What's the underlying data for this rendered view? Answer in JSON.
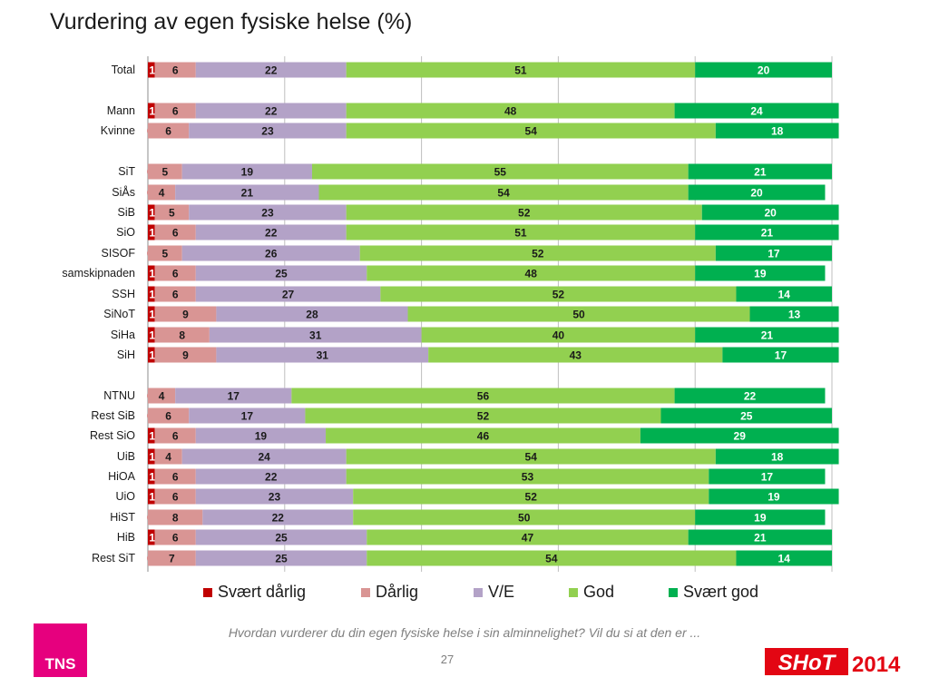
{
  "title": "Vurdering av egen fysiske helse (%)",
  "footnote": "Hvordan vurderer du din egen fysiske helse i sin alminnelighet? Vil du si at den er ...",
  "page_number": "27",
  "logos": {
    "tns": "TNS",
    "shot": "SHoT",
    "year": "2014"
  },
  "colors": {
    "svaert_darlig": "#c00000",
    "darlig": "#d99594",
    "ve": "#b3a2c7",
    "god": "#92d050",
    "svaert_god": "#00b050"
  },
  "chart_data": {
    "type": "bar",
    "orientation": "horizontal",
    "stacked": true,
    "title": "Vurdering av egen fysiske helse (%)",
    "xlim": [
      0,
      100
    ],
    "grid": true,
    "legend_position": "bottom",
    "series": [
      {
        "name": "Svært dårlig",
        "color": "#c00000"
      },
      {
        "name": "Dårlig",
        "color": "#d99594"
      },
      {
        "name": "V/E",
        "color": "#b3a2c7"
      },
      {
        "name": "God",
        "color": "#92d050"
      },
      {
        "name": "Svært god",
        "color": "#00b050"
      }
    ],
    "rows": [
      {
        "label": "Total",
        "values": [
          1,
          6,
          22,
          51,
          20
        ]
      },
      {
        "label": "Mann",
        "values": [
          1,
          6,
          22,
          48,
          24
        ]
      },
      {
        "label": "Kvinne",
        "values": [
          0,
          6,
          23,
          54,
          18
        ]
      },
      {
        "label": "SiT",
        "values": [
          0,
          5,
          19,
          55,
          21
        ]
      },
      {
        "label": "SiÅs",
        "values": [
          0,
          4,
          21,
          54,
          20
        ]
      },
      {
        "label": "SiB",
        "values": [
          1,
          5,
          23,
          52,
          20
        ]
      },
      {
        "label": "SiO",
        "values": [
          1,
          6,
          22,
          51,
          21
        ]
      },
      {
        "label": "SISOF",
        "values": [
          0,
          5,
          26,
          52,
          17
        ]
      },
      {
        "label": "samskipnaden",
        "values": [
          1,
          6,
          25,
          48,
          19
        ]
      },
      {
        "label": "SSH",
        "values": [
          1,
          6,
          27,
          52,
          14
        ]
      },
      {
        "label": "SiNoT",
        "values": [
          1,
          9,
          28,
          50,
          13
        ]
      },
      {
        "label": "SiHa",
        "values": [
          1,
          8,
          31,
          40,
          21
        ]
      },
      {
        "label": "SiH",
        "values": [
          1,
          9,
          31,
          43,
          17
        ]
      },
      {
        "label": "NTNU",
        "values": [
          0,
          4,
          17,
          56,
          22
        ]
      },
      {
        "label": "Rest SiB",
        "values": [
          0,
          6,
          17,
          52,
          25
        ]
      },
      {
        "label": "Rest SiO",
        "values": [
          1,
          6,
          19,
          46,
          29
        ]
      },
      {
        "label": "UiB",
        "values": [
          1,
          4,
          24,
          54,
          18
        ]
      },
      {
        "label": "HiOA",
        "values": [
          1,
          6,
          22,
          53,
          17
        ]
      },
      {
        "label": "UiO",
        "values": [
          1,
          6,
          23,
          52,
          19
        ]
      },
      {
        "label": "HiST",
        "values": [
          0,
          8,
          22,
          50,
          19
        ]
      },
      {
        "label": "HiB",
        "values": [
          1,
          6,
          25,
          47,
          21
        ]
      },
      {
        "label": "Rest SiT",
        "values": [
          0,
          7,
          25,
          54,
          14
        ]
      }
    ]
  }
}
